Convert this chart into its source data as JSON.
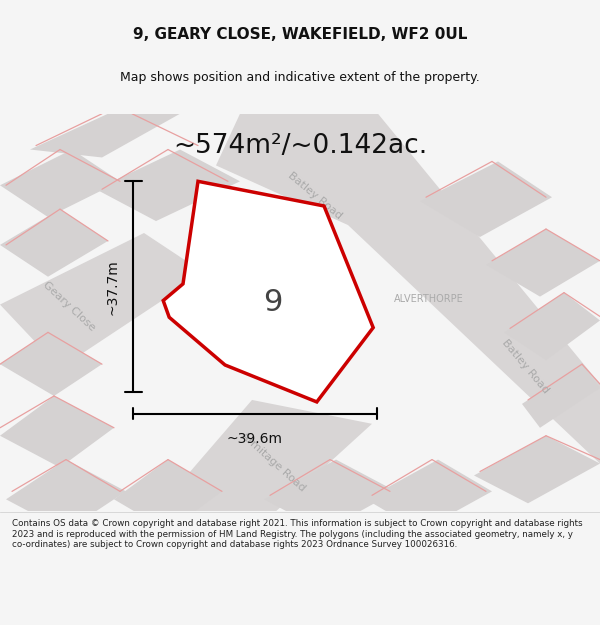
{
  "title_line1": "9, GEARY CLOSE, WAKEFIELD, WF2 0UL",
  "title_line2": "Map shows position and indicative extent of the property.",
  "area_label": "~574m²/~0.142ac.",
  "plot_number": "9",
  "width_label": "~39.6m",
  "height_label": "~37.7m",
  "alverthorpe_label": "ALVERTHORPE",
  "geary_close_label": "Geary Close",
  "batley_road_label1": "Batley Road",
  "batley_road_label2": "Batley Road",
  "armitage_road_label": "Armitage Road",
  "footer_text": "Contains OS data © Crown copyright and database right 2021. This information is subject to Crown copyright and database rights 2023 and is reproduced with the permission of HM Land Registry. The polygons (including the associated geometry, namely x, y co-ordinates) are subject to Crown copyright and database rights 2023 Ordnance Survey 100026316.",
  "bg_color": "#f5f5f5",
  "map_bg": "#eeecec",
  "plot_fill": "#ffffff",
  "plot_outline": "#cc0000",
  "road_color": "#d4d0d0",
  "pink_line_color": "#e8a0a0",
  "dim_line_color": "#111111",
  "title_color": "#111111",
  "footer_color": "#222222",
  "road_gray": "#d8d5d5",
  "block_gray": "#d5d2d2"
}
